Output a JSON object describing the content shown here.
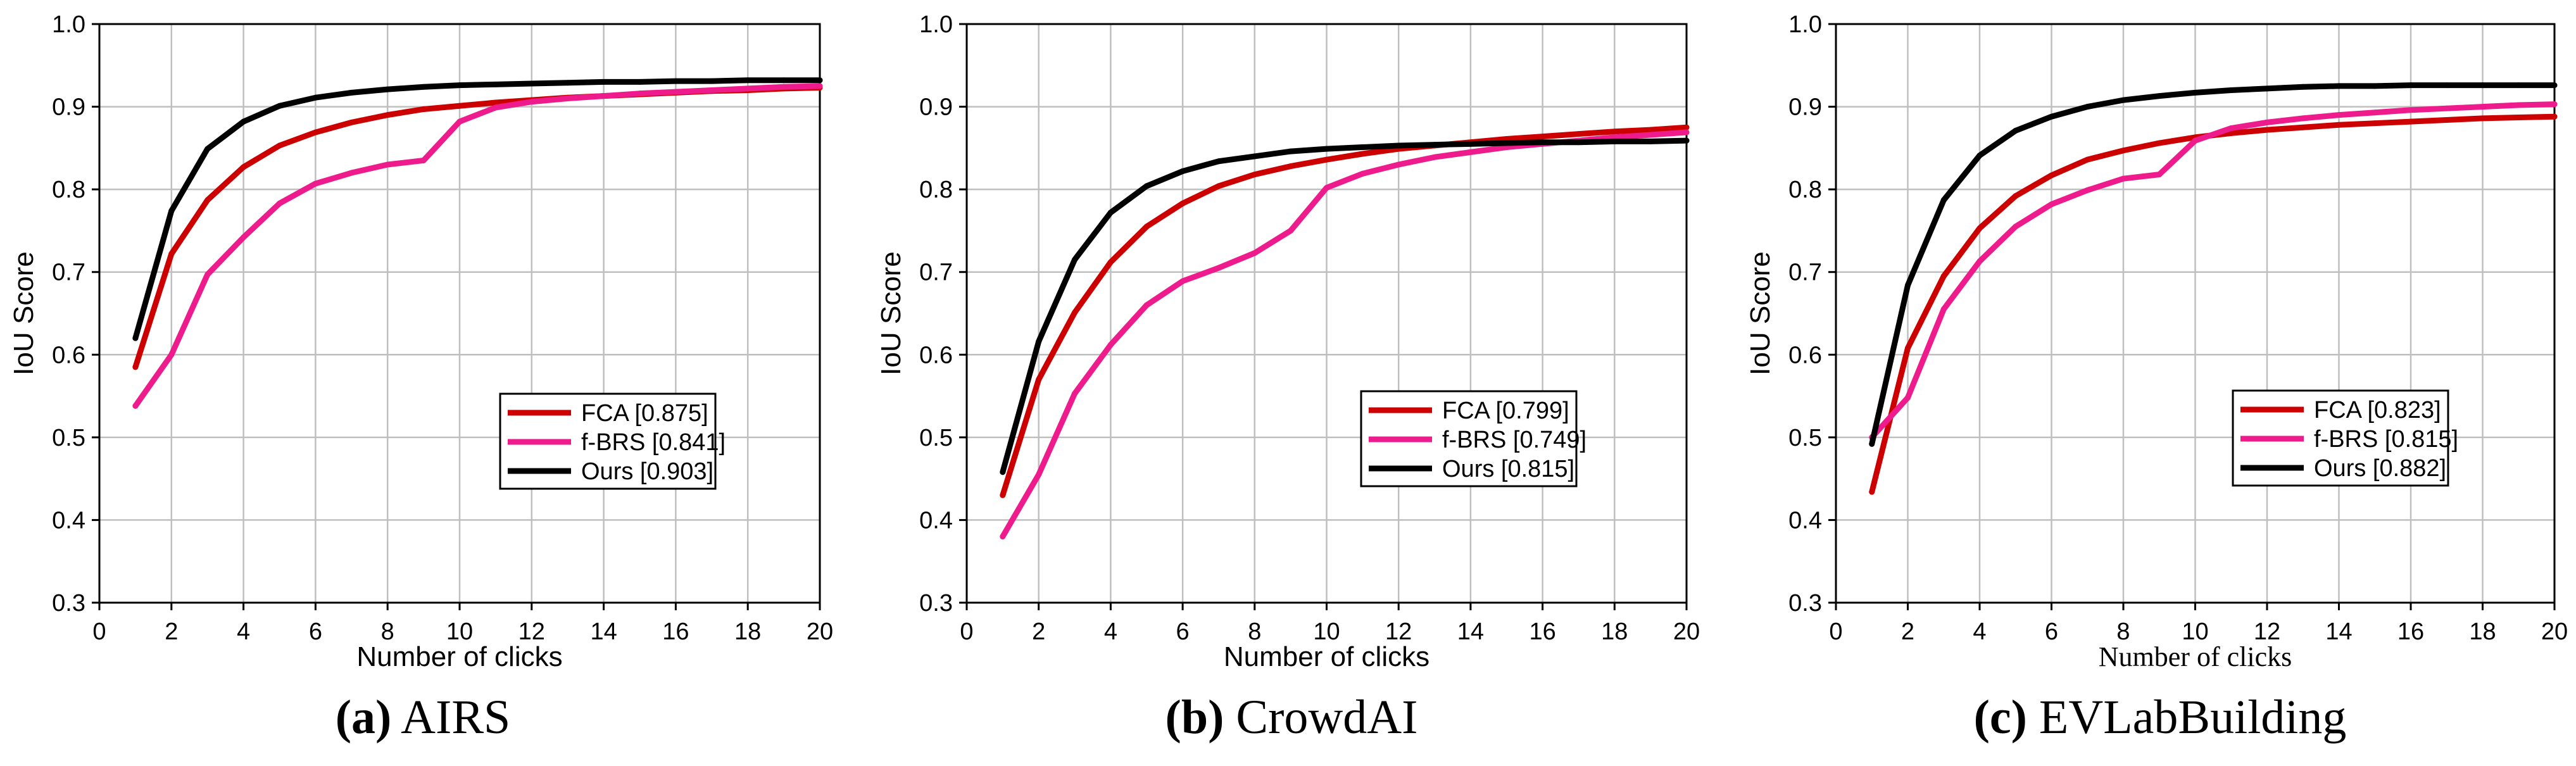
{
  "chart_data": [
    {
      "type": "line",
      "title": "",
      "xlabel": "Number of clicks",
      "ylabel": "IoU Score",
      "xlim": [
        0,
        20
      ],
      "ylim": [
        0.3,
        1.0
      ],
      "xticks": [
        "0",
        "2",
        "4",
        "6",
        "8",
        "10",
        "12",
        "14",
        "16",
        "18",
        "20"
      ],
      "yticks": [
        "0.3",
        "0.4",
        "0.5",
        "0.6",
        "0.7",
        "0.8",
        "0.9",
        "1.0"
      ],
      "grid": true,
      "legend_position": "lower-right",
      "caption_label": "(a)",
      "caption_text": "AIRS",
      "x": [
        1,
        2,
        3,
        4,
        5,
        6,
        7,
        8,
        9,
        10,
        11,
        12,
        13,
        14,
        15,
        16,
        17,
        18,
        19,
        20
      ],
      "series": [
        {
          "name": "FCA",
          "legend": "FCA [0.875]",
          "color": "#cc0000",
          "values": [
            0.585,
            0.722,
            0.787,
            0.827,
            0.853,
            0.869,
            0.881,
            0.89,
            0.897,
            0.901,
            0.905,
            0.908,
            0.911,
            0.913,
            0.915,
            0.917,
            0.919,
            0.92,
            0.922,
            0.923
          ]
        },
        {
          "name": "f-BRS",
          "legend": "f-BRS [0.841]",
          "color": "#ee1b8c",
          "values": [
            0.538,
            0.6,
            0.697,
            0.742,
            0.783,
            0.807,
            0.82,
            0.83,
            0.835,
            0.882,
            0.899,
            0.906,
            0.91,
            0.913,
            0.916,
            0.918,
            0.92,
            0.922,
            0.924,
            0.925
          ]
        },
        {
          "name": "Ours",
          "legend": "Ours [0.903]",
          "color": "#000000",
          "values": [
            0.62,
            0.774,
            0.849,
            0.882,
            0.901,
            0.911,
            0.917,
            0.921,
            0.924,
            0.926,
            0.927,
            0.928,
            0.929,
            0.93,
            0.93,
            0.931,
            0.931,
            0.932,
            0.932,
            0.932
          ]
        }
      ]
    },
    {
      "type": "line",
      "title": "",
      "xlabel": "Number of clicks",
      "ylabel": "IoU Score",
      "xlim": [
        0,
        20
      ],
      "ylim": [
        0.3,
        1.0
      ],
      "xticks": [
        "0",
        "2",
        "4",
        "6",
        "8",
        "10",
        "12",
        "14",
        "16",
        "18",
        "20"
      ],
      "yticks": [
        "0.3",
        "0.4",
        "0.5",
        "0.6",
        "0.7",
        "0.8",
        "0.9",
        "1.0"
      ],
      "grid": true,
      "legend_position": "lower-right",
      "caption_label": "(b)",
      "caption_text": "CrowdAI",
      "x": [
        1,
        2,
        3,
        4,
        5,
        6,
        7,
        8,
        9,
        10,
        11,
        12,
        13,
        14,
        15,
        16,
        17,
        18,
        19,
        20
      ],
      "series": [
        {
          "name": "FCA",
          "legend": "FCA [0.799]",
          "color": "#cc0000",
          "values": [
            0.43,
            0.57,
            0.651,
            0.712,
            0.755,
            0.783,
            0.804,
            0.818,
            0.828,
            0.836,
            0.843,
            0.849,
            0.853,
            0.857,
            0.861,
            0.864,
            0.867,
            0.87,
            0.872,
            0.875
          ]
        },
        {
          "name": "f-BRS",
          "legend": "f-BRS [0.749]",
          "color": "#ee1b8c",
          "values": [
            0.38,
            0.455,
            0.553,
            0.612,
            0.66,
            0.689,
            0.705,
            0.723,
            0.75,
            0.802,
            0.819,
            0.83,
            0.839,
            0.845,
            0.851,
            0.855,
            0.859,
            0.863,
            0.866,
            0.869
          ]
        },
        {
          "name": "Ours",
          "legend": "Ours [0.815]",
          "color": "#000000",
          "values": [
            0.458,
            0.616,
            0.715,
            0.772,
            0.804,
            0.822,
            0.834,
            0.84,
            0.846,
            0.849,
            0.851,
            0.853,
            0.854,
            0.855,
            0.856,
            0.857,
            0.857,
            0.858,
            0.858,
            0.859
          ]
        }
      ]
    },
    {
      "type": "line",
      "title": "",
      "xlabel": "Number of clicks",
      "ylabel": "IoU Score",
      "xlim": [
        0,
        20
      ],
      "ylim": [
        0.3,
        1.0
      ],
      "xticks": [
        "0",
        "2",
        "4",
        "6",
        "8",
        "10",
        "12",
        "14",
        "16",
        "18",
        "20"
      ],
      "yticks": [
        "0.3",
        "0.4",
        "0.5",
        "0.6",
        "0.7",
        "0.8",
        "0.9",
        "1.0"
      ],
      "grid": true,
      "legend_position": "lower-right",
      "caption_label": "(c)",
      "caption_text": "EVLabBuilding",
      "x": [
        1,
        2,
        3,
        4,
        5,
        6,
        7,
        8,
        9,
        10,
        11,
        12,
        13,
        14,
        15,
        16,
        17,
        18,
        19,
        20
      ],
      "series": [
        {
          "name": "FCA",
          "legend": "FCA [0.823]",
          "color": "#cc0000",
          "values": [
            0.434,
            0.608,
            0.695,
            0.753,
            0.792,
            0.817,
            0.836,
            0.847,
            0.856,
            0.863,
            0.868,
            0.872,
            0.875,
            0.878,
            0.88,
            0.882,
            0.884,
            0.886,
            0.887,
            0.888
          ]
        },
        {
          "name": "f-BRS",
          "legend": "f-BRS [0.815]",
          "color": "#ee1b8c",
          "values": [
            0.5,
            0.548,
            0.655,
            0.713,
            0.755,
            0.782,
            0.799,
            0.813,
            0.818,
            0.859,
            0.874,
            0.881,
            0.886,
            0.89,
            0.893,
            0.896,
            0.898,
            0.9,
            0.902,
            0.903
          ]
        },
        {
          "name": "Ours",
          "legend": "Ours [0.882]",
          "color": "#000000",
          "values": [
            0.492,
            0.684,
            0.787,
            0.841,
            0.871,
            0.888,
            0.9,
            0.908,
            0.913,
            0.917,
            0.92,
            0.922,
            0.924,
            0.925,
            0.925,
            0.926,
            0.926,
            0.926,
            0.926,
            0.926
          ]
        }
      ]
    }
  ]
}
